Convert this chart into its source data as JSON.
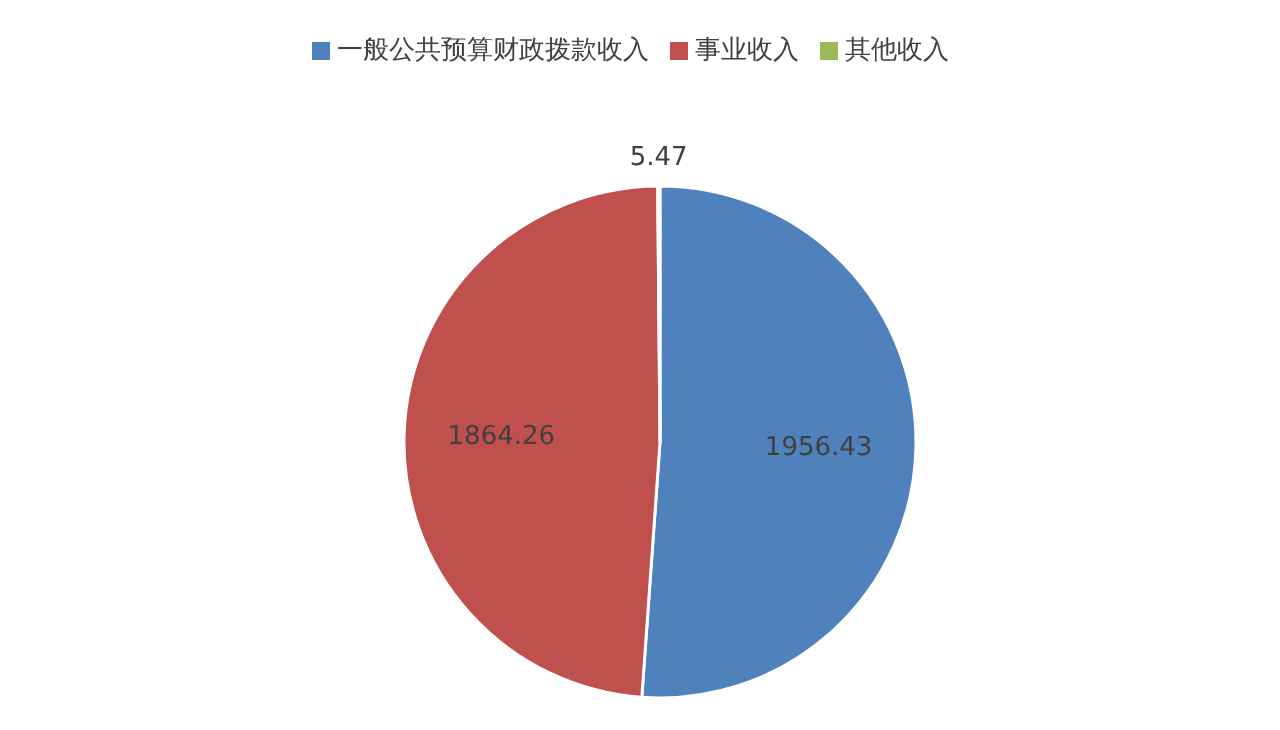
{
  "chart_data": {
    "type": "pie",
    "categories": [
      "一般公共预算财政拨款收入",
      "事业收入",
      "其他收入"
    ],
    "values": [
      1956.43,
      1864.26,
      5.47
    ],
    "colors": [
      "#4f81bd",
      "#c0504d",
      "#9bbb59"
    ],
    "data_labels": true,
    "legend": "top"
  }
}
